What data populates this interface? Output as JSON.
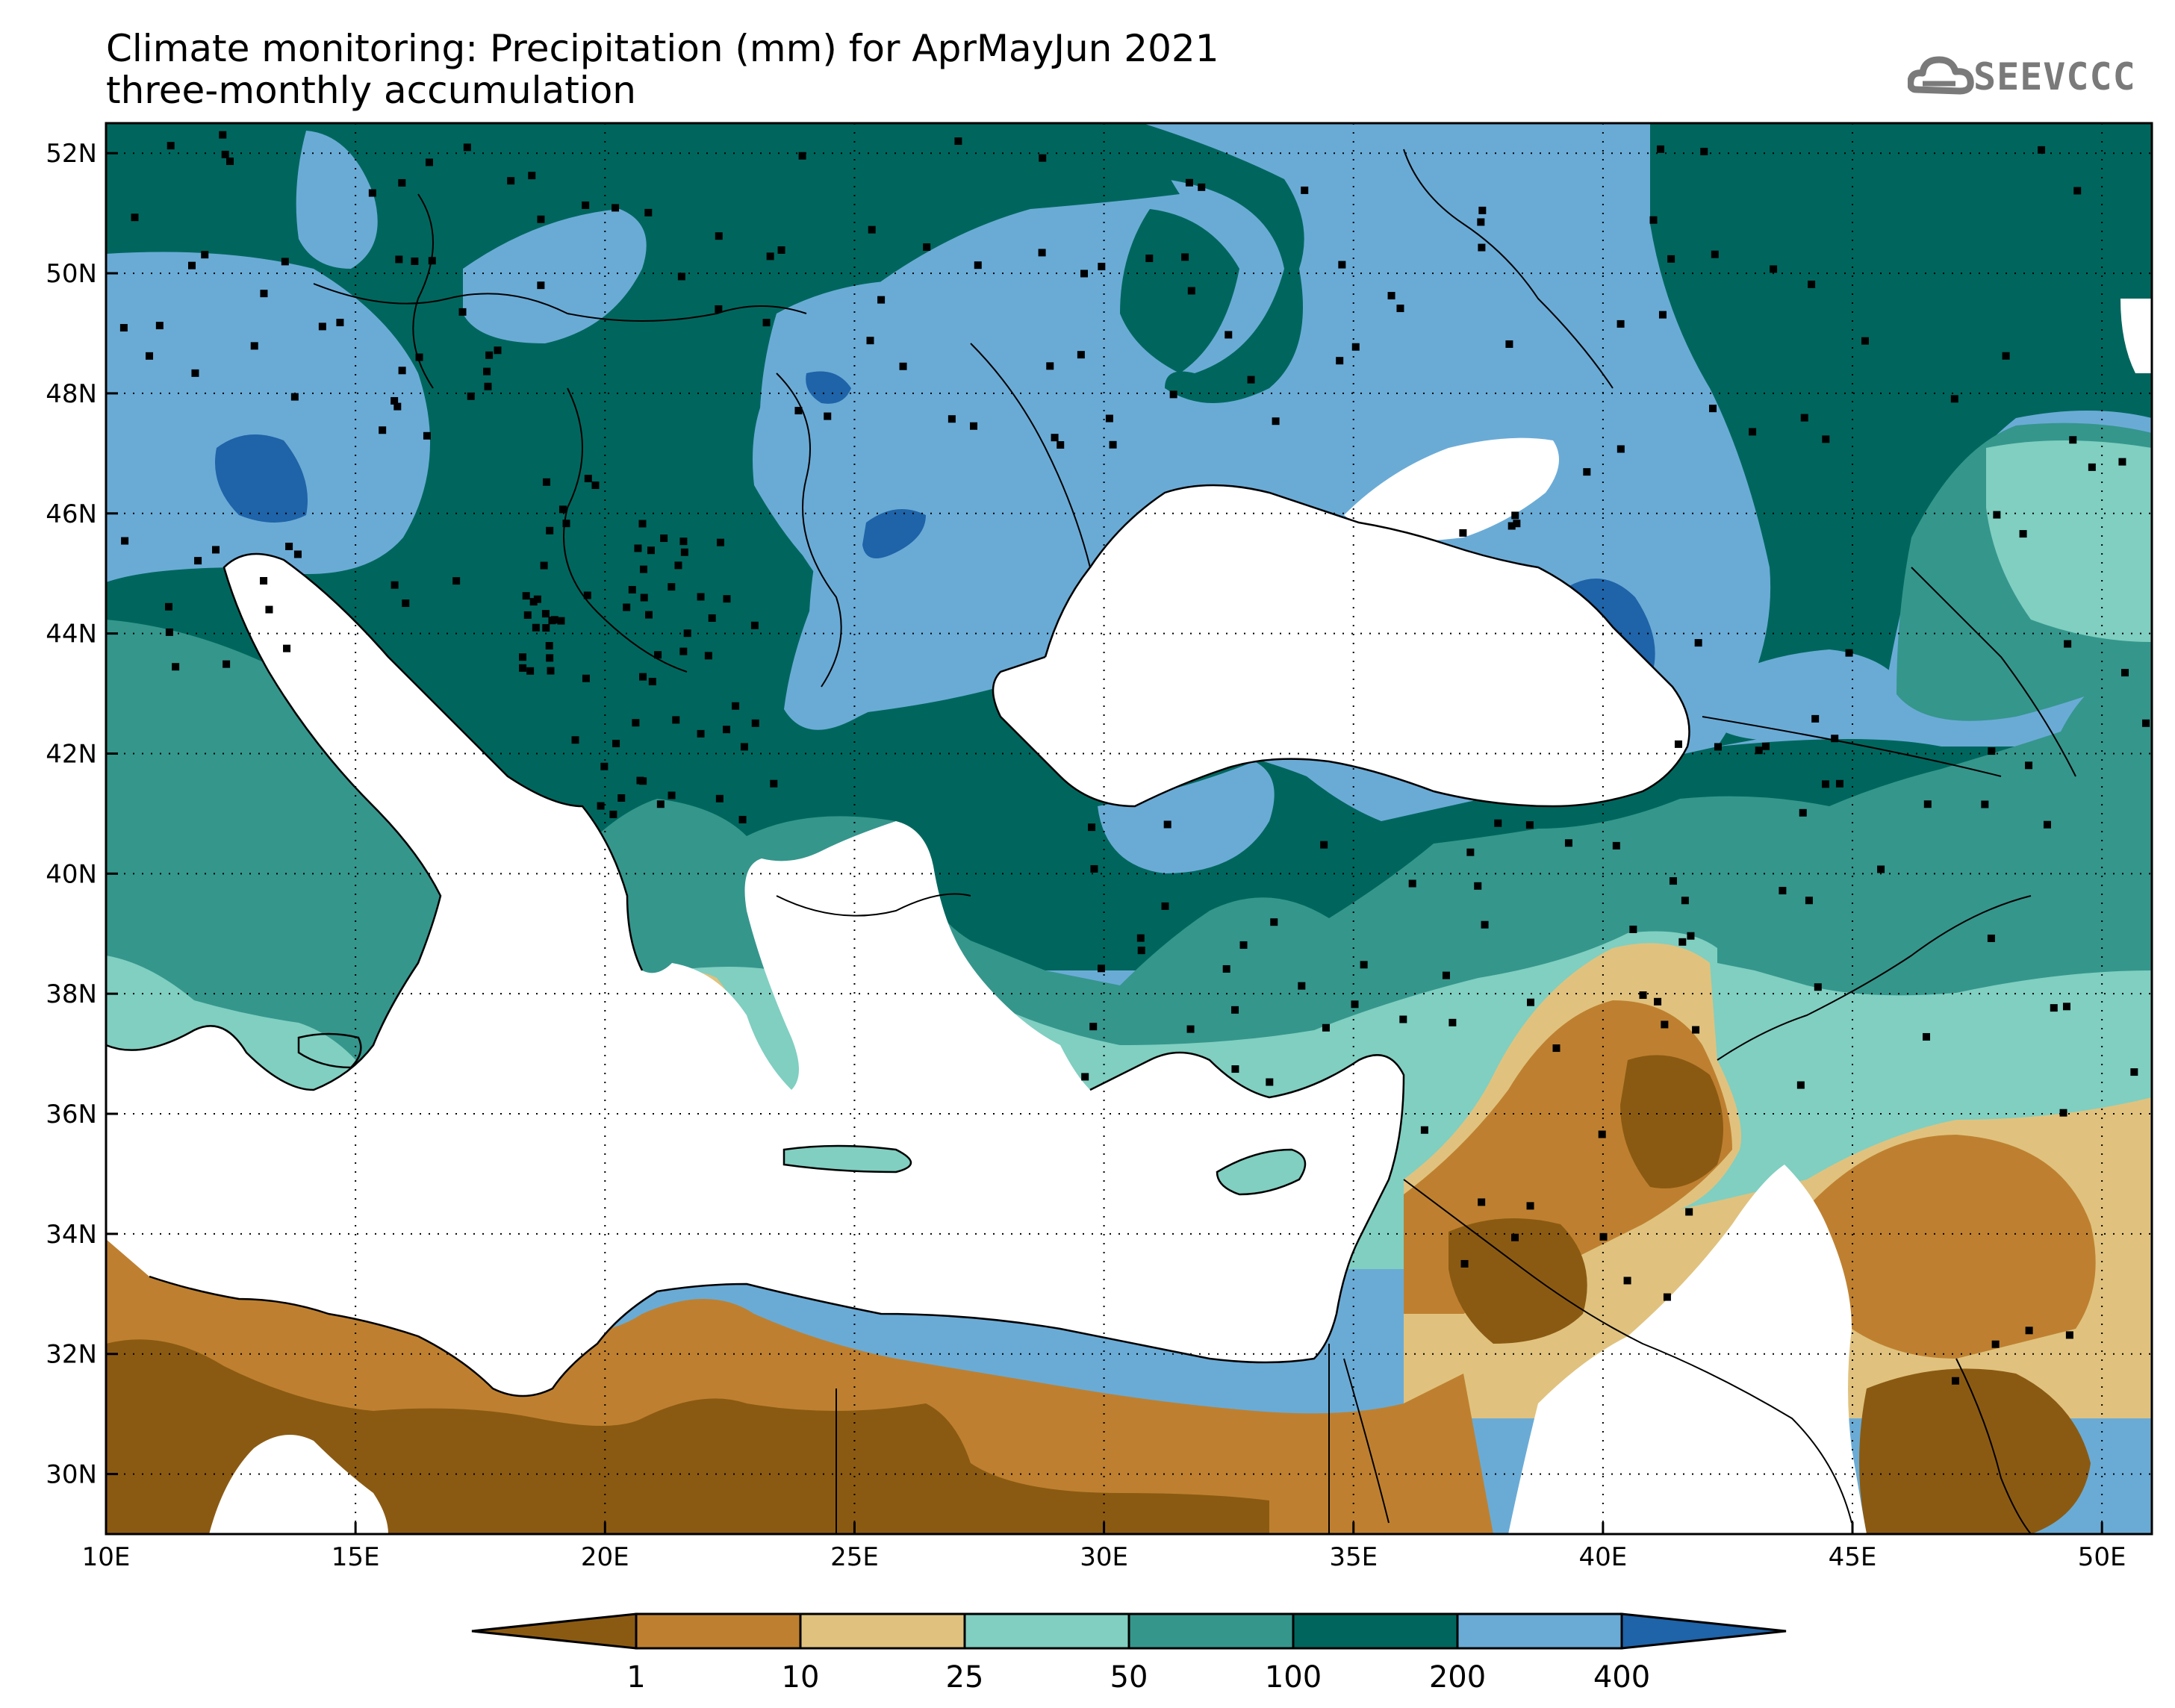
{
  "title": {
    "line1": "Climate monitoring: Precipitation (mm) for AprMayJun 2021",
    "line2": "three-monthly accumulation"
  },
  "logo": {
    "text": "SEEVCCC",
    "icon": "cloud-icon"
  },
  "map": {
    "lon_range": [
      10,
      51
    ],
    "lat_range": [
      29,
      52.5
    ],
    "lon_ticks": [
      "10E",
      "15E",
      "20E",
      "25E",
      "30E",
      "35E",
      "40E",
      "45E",
      "50E"
    ],
    "lat_ticks": [
      "30N",
      "32N",
      "34N",
      "36N",
      "38N",
      "40N",
      "42N",
      "44N",
      "46N",
      "48N",
      "50N",
      "52N"
    ],
    "grid": true
  },
  "colorbar": {
    "levels": [
      "1",
      "10",
      "25",
      "50",
      "100",
      "200",
      "400"
    ],
    "colors": [
      "#8b5a12",
      "#be8030",
      "#e0c27e",
      "#80cfc1",
      "#35968c",
      "#00665d",
      "#6aabd6",
      "#1f63a8"
    ]
  }
}
